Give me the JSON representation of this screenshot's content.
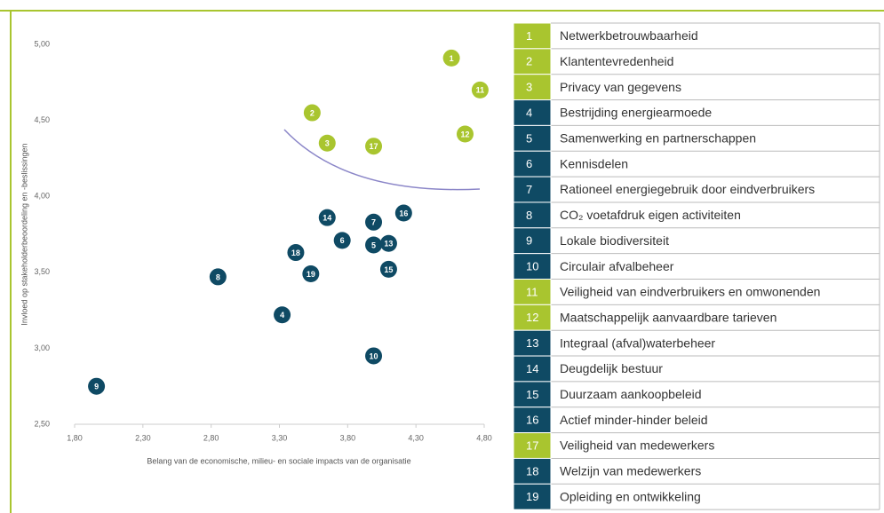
{
  "chart_data": {
    "type": "scatter",
    "x_label": "Belang van de economische, milieu- en sociale impacts van de organisatie",
    "y_label": "Invloed op stakeholderbeoordeling en -beslissingen",
    "xlim": [
      1.8,
      4.8
    ],
    "ylim": [
      2.5,
      5.0
    ],
    "xticks": [
      {
        "value": 1.8,
        "label": "1,80"
      },
      {
        "value": 2.3,
        "label": "2,30"
      },
      {
        "value": 2.8,
        "label": "2,80"
      },
      {
        "value": 3.3,
        "label": "3,30"
      },
      {
        "value": 3.8,
        "label": "3,80"
      },
      {
        "value": 4.3,
        "label": "4,30"
      },
      {
        "value": 4.8,
        "label": "4,80"
      }
    ],
    "yticks": [
      {
        "value": 2.5,
        "label": "2,50"
      },
      {
        "value": 3.0,
        "label": "3,00"
      },
      {
        "value": 3.5,
        "label": "3,50"
      },
      {
        "value": 4.0,
        "label": "4,00"
      },
      {
        "value": 4.5,
        "label": "4,50"
      },
      {
        "value": 5.0,
        "label": "5,00"
      }
    ],
    "grid": false,
    "labels": [
      "1",
      "2",
      "3",
      "4",
      "5",
      "6",
      "7",
      "8",
      "9",
      "10",
      "11",
      "12",
      "13",
      "14",
      "15",
      "16",
      "17",
      "18",
      "19"
    ],
    "x": [
      4.56,
      3.54,
      3.65,
      3.32,
      3.99,
      3.76,
      3.99,
      2.85,
      1.96,
      3.99,
      4.77,
      4.66,
      4.1,
      3.65,
      4.1,
      4.21,
      3.99,
      3.42,
      3.53
    ],
    "values": [
      4.91,
      4.55,
      4.35,
      3.22,
      3.68,
      3.71,
      3.83,
      3.47,
      2.75,
      2.95,
      4.7,
      4.41,
      3.69,
      3.86,
      3.52,
      3.89,
      4.33,
      3.63,
      3.49
    ],
    "colors": [
      "#a9c52f",
      "#a9c52f",
      "#a9c52f",
      "#0f4a64",
      "#0f4a64",
      "#0f4a64",
      "#0f4a64",
      "#0f4a64",
      "#0f4a64",
      "#0f4a64",
      "#a9c52f",
      "#a9c52f",
      "#0f4a64",
      "#0f4a64",
      "#0f4a64",
      "#0f4a64",
      "#a9c52f",
      "#0f4a64",
      "#0f4a64"
    ]
  },
  "legend": {
    "items": [
      "Netwerkbetrouwbaarheid",
      "Klantentevredenheid",
      "Privacy van gegevens",
      "Bestrijding energiearmoede",
      "Samenwerking en partnerschappen",
      "Kennisdelen",
      "Rationeel energiegebruik door eindverbruikers",
      "CO₂ voetafdruk eigen activiteiten",
      "Lokale biodiversiteit",
      "Circulair afvalbeheer",
      "Veiligheid van eindverbruikers en omwonenden",
      "Maatschappelijk aanvaardbare tarieven",
      "Integraal (afval)waterbeheer",
      "Deugdelijk bestuur",
      "Duurzaam aankoopbeleid",
      "Actief minder-hinder beleid",
      "Veiligheid van medewerkers",
      "Welzijn van medewerkers",
      "Opleiding en ontwikkeling"
    ]
  }
}
